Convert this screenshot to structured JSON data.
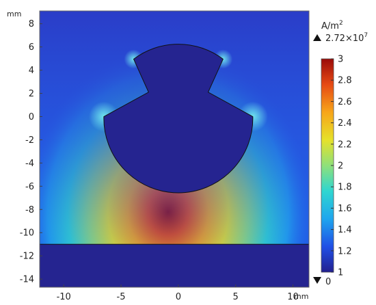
{
  "figure": {
    "x_unit": "mm",
    "y_unit": "mm",
    "x_ticks": [
      "-10",
      "-5",
      "0",
      "5",
      "10"
    ],
    "x_tick_values": [
      -10,
      -5,
      0,
      5,
      10
    ],
    "y_ticks": [
      "8",
      "6",
      "4",
      "2",
      "0",
      "-2",
      "-4",
      "-6",
      "-8",
      "-10",
      "-12",
      "-14"
    ],
    "y_tick_values": [
      8,
      6,
      4,
      2,
      0,
      -2,
      -4,
      -6,
      -8,
      -10,
      -12,
      -14
    ],
    "x_range": [
      -12.1,
      11.4
    ],
    "y_range": [
      -14.7,
      9.1
    ]
  },
  "colorbar": {
    "unit_base": "A/m",
    "unit_exp": "2",
    "max_marker": "2.72×10",
    "max_marker_exp": "7",
    "min_marker": "0",
    "ticks": [
      "3",
      "2.8",
      "2.6",
      "2.4",
      "2.2",
      "2",
      "1.8",
      "1.6",
      "1.4",
      "1.2",
      "1"
    ],
    "tick_values": [
      3,
      2.8,
      2.6,
      2.4,
      2.2,
      2,
      1.8,
      1.6,
      1.4,
      1.2,
      1
    ],
    "range": [
      1,
      3
    ],
    "colormap": [
      "#22208f",
      "#1f4fe6",
      "#1fa6ee",
      "#2fd6d0",
      "#8fe07a",
      "#e6e12a",
      "#f7a51a",
      "#e64a14",
      "#9a0a08"
    ]
  },
  "geometry": {
    "rotor_center": [
      0,
      0
    ],
    "rotor_radius": 6.5,
    "plate_top_y": -11,
    "plate_bottom_y": -14.7
  }
}
